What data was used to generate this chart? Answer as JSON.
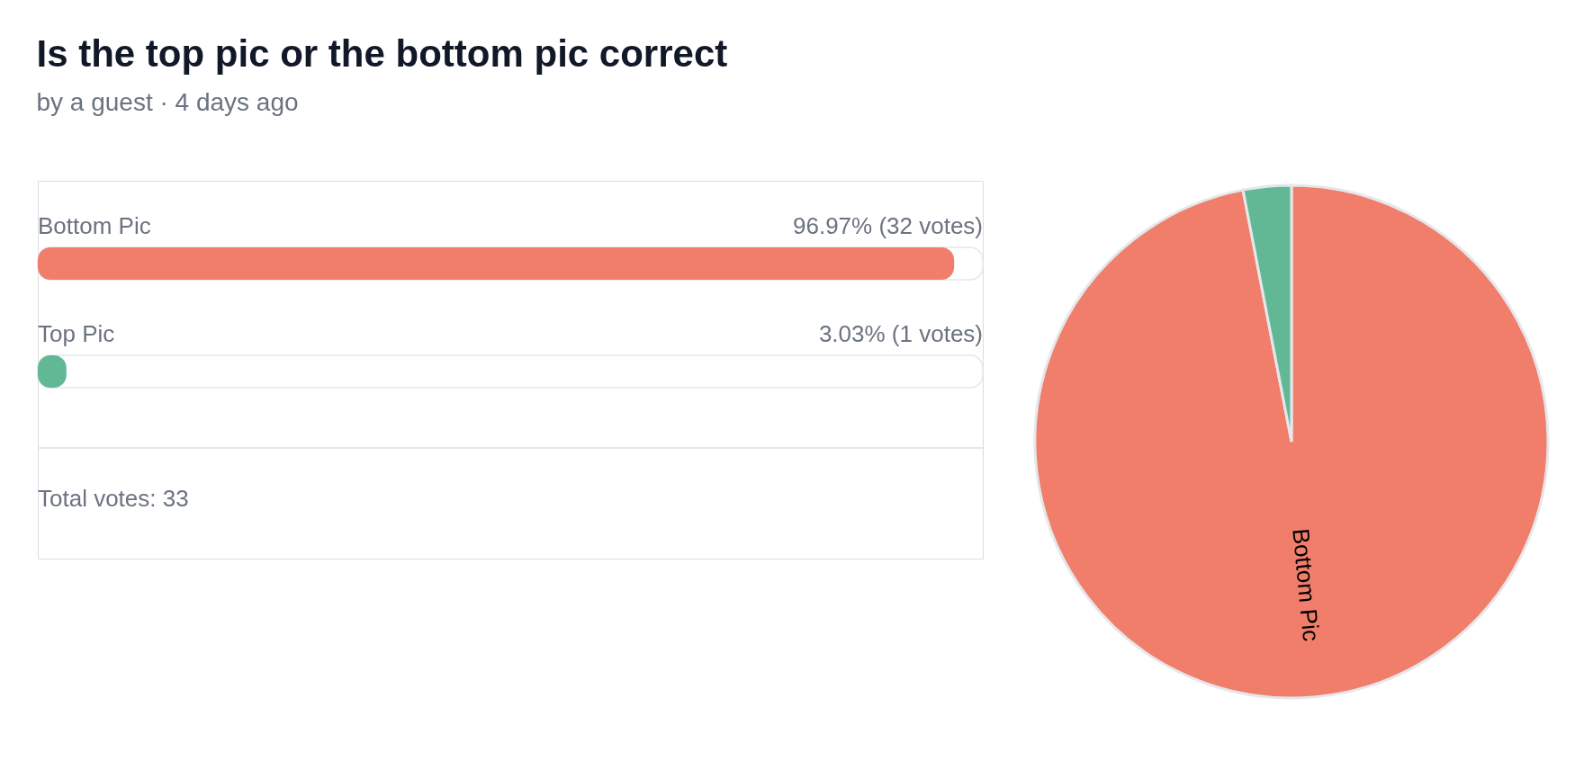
{
  "chart_data": [
    {
      "type": "bar",
      "orientation": "horizontal",
      "title": "Is the top pic or the bottom pic correct",
      "subtitle": "by a guest · 4 days ago",
      "categories": [
        "Bottom Pic",
        "Top Pic"
      ],
      "values": [
        96.97,
        3.03
      ],
      "colors": [
        "#f07e6b",
        "#62b895"
      ],
      "value_labels": [
        "96.97% (32 votes)",
        "3.03% (1 votes)"
      ],
      "xlim": [
        0,
        100
      ],
      "tick_labels": false,
      "grid": false,
      "annotations": [
        "Total votes: 33"
      ]
    },
    {
      "type": "pie",
      "categories": [
        "Bottom Pic",
        null
      ],
      "values": [
        96.97,
        3.03
      ],
      "colors": [
        "#f07e6b",
        "#62b895"
      ]
    }
  ]
}
